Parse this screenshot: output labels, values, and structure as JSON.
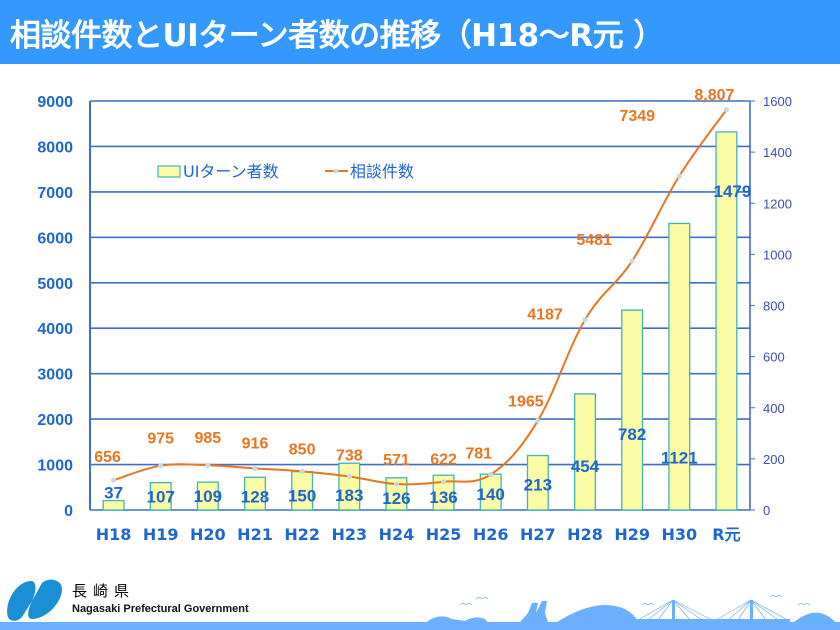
{
  "header": {
    "title": "相談件数とUIターン者数の推移（H18～R元 ）"
  },
  "colors": {
    "title_bg": "#3399ff",
    "axis_text": "#1e66d0",
    "right_axis_text": "#3a4fb5",
    "grid": "#3f6fc4",
    "bar_fill": "#fdfca6",
    "bar_stroke": "#3fb5b5",
    "line": "#e9751f",
    "marker": "#c9d9de",
    "line_label": "#e9751f",
    "bar_label": "#1e66d0",
    "footer_blue": "#6ab0ff"
  },
  "chart_data": {
    "type": "bar+line",
    "title": "相談件数とUIターン者数の推移（H18～R元 ）",
    "categories": [
      "H18",
      "H19",
      "H20",
      "H21",
      "H22",
      "H23",
      "H24",
      "H25",
      "H26",
      "H27",
      "H28",
      "H29",
      "H30",
      "R元"
    ],
    "series": [
      {
        "name": "UIターン者数",
        "type": "bar",
        "axis": "right",
        "values": [
          37,
          107,
          109,
          128,
          150,
          183,
          126,
          136,
          140,
          213,
          454,
          782,
          1121,
          1479
        ],
        "labels": [
          "37",
          "107",
          "109",
          "128",
          "150",
          "183",
          "126",
          "136",
          "140",
          "213",
          "454",
          "782",
          "1121",
          "1479"
        ]
      },
      {
        "name": "相談件数",
        "type": "line",
        "axis": "left",
        "values": [
          656,
          975,
          985,
          916,
          850,
          738,
          571,
          622,
          781,
          1965,
          4187,
          5481,
          7349,
          8807
        ],
        "labels": [
          "656",
          "975",
          "985",
          "916",
          "850",
          "738",
          "571",
          "622",
          "781",
          "1965",
          "4187",
          "5481",
          "7349",
          "8,807"
        ]
      }
    ],
    "left_axis": {
      "ylim": [
        0,
        9000
      ],
      "ticks": [
        "0",
        "1000",
        "2000",
        "3000",
        "4000",
        "5000",
        "6000",
        "7000",
        "8000",
        "9000"
      ]
    },
    "right_axis": {
      "ylim": [
        0,
        1600
      ],
      "ticks": [
        "0",
        "200",
        "400",
        "600",
        "800",
        "1000",
        "1200",
        "1400",
        "1600"
      ]
    },
    "grid": true,
    "legend": {
      "placement": "top-left",
      "items": [
        {
          "label": "UIターン者数",
          "kind": "bar"
        },
        {
          "label": "相談件数",
          "kind": "line"
        }
      ]
    },
    "xlabel": "",
    "ylabel": ""
  },
  "footer": {
    "org_name_jp": "長崎県",
    "org_name_en": "Nagasaki Prefectural Government"
  }
}
